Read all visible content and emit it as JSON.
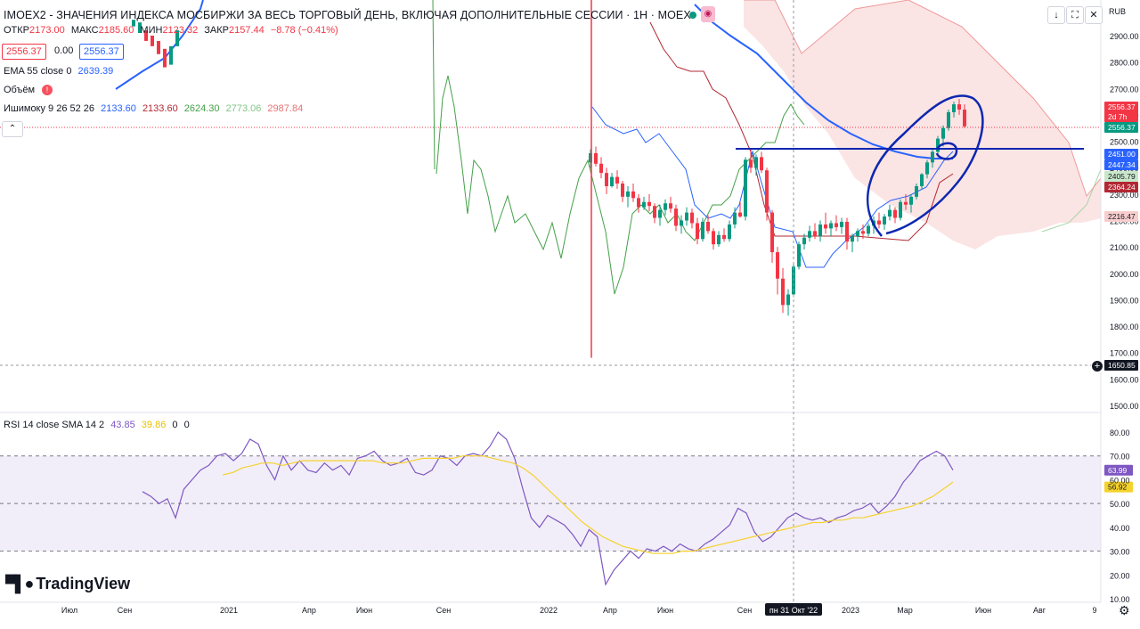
{
  "header": {
    "title": "IMOEX2 - ЗНАЧЕНИЯ ИНДЕКСА МОСБИРЖИ ЗА ВЕСЬ ТОРГОВЫЙ ДЕНЬ, ВКЛЮЧАЯ ДОПОЛНИТЕЛЬНЫЕ СЕССИИ · 1Н · MOEX",
    "currency": "RUB",
    "ohlc": {
      "open_label": "ОТКР",
      "open": "2173.00",
      "high_label": "МАКС",
      "high": "2185.60",
      "low_label": "МИН",
      "low": "2123.32",
      "close_label": "ЗАКР",
      "close": "2157.44",
      "change": "−8.78 (−0.41%)"
    },
    "sell_price": "2556.37",
    "spread": "0.00",
    "buy_price": "2556.37"
  },
  "indicators": {
    "ema": {
      "label": "EMA 55 close 0",
      "value": "2639.39"
    },
    "volume": {
      "label": "Объём"
    },
    "ichimoku": {
      "label": "Ишимоку 9 26 52 26",
      "values": [
        "2133.60",
        "2133.60",
        "2624.30",
        "2773.06",
        "2987.84"
      ]
    },
    "rsi": {
      "label": "RSI 14 close SMA 14 2",
      "values": [
        "43.85",
        "39.86",
        "0",
        "0"
      ]
    }
  },
  "toolbar": {
    "collapse": "⌃",
    "down": "↓",
    "expand": "⛶",
    "close": "✕"
  },
  "branding": {
    "logo": "TradingView"
  },
  "colors": {
    "up": "#089981",
    "down": "#f23645",
    "ema": "#2962ff",
    "tenkan": "#2962ff",
    "kijun": "#b22833",
    "chikou": "#43a047",
    "cloud": "#f8cdcd",
    "rsi": "#7e57c2",
    "rsi_ma": "#f5d22b",
    "annotation": "#0d27b0"
  },
  "chart_data": [
    {
      "type": "candlestick",
      "title": "IMOEX2 - ЗНАЧЕНИЯ ИНДЕКСА МОСБИРЖИ ЗА ВЕСЬ ТОРГОВЫЙ ДЕНЬ, ВКЛЮЧАЯ ДОПОЛНИТЕЛЬНЫЕ СЕССИИ · 1Н · MOEX",
      "x_ticks": [
        "Июл",
        "Сен",
        "2021",
        "Апр",
        "Июн",
        "Сен",
        "2022",
        "Апр",
        "Июн",
        "Сен",
        "пн 31 Окт '22",
        "2023",
        "Мар",
        "Июн",
        "Авг",
        "9"
      ],
      "y_ticks": [
        "2900.00",
        "2800.00",
        "2700.00",
        "2600.00",
        "2500.00",
        "2400.00",
        "2300.00",
        "2200.00",
        "2100.00",
        "2000.00",
        "1900.00",
        "1800.00",
        "1700.00",
        "1600.00",
        "1500.00"
      ],
      "ylim": [
        1500,
        2960
      ],
      "price_labels": [
        "2556.37",
        "2d 7h",
        "2556.37",
        "2451.00",
        "2447.34",
        "2405.79",
        "2364.24",
        "2216.47",
        "1650.85"
      ],
      "candles": [
        [
          2420,
          2470,
          2400,
          2455
        ],
        [
          2455,
          2480,
          2405,
          2415
        ],
        [
          2415,
          2440,
          2360,
          2380
        ],
        [
          2380,
          2400,
          2300,
          2330
        ],
        [
          2330,
          2380,
          2325,
          2365
        ],
        [
          2365,
          2390,
          2320,
          2340
        ],
        [
          2340,
          2350,
          2270,
          2290
        ],
        [
          2290,
          2330,
          2250,
          2310
        ],
        [
          2310,
          2340,
          2270,
          2285
        ],
        [
          2285,
          2300,
          2230,
          2250
        ],
        [
          2250,
          2290,
          2240,
          2270
        ],
        [
          2270,
          2300,
          2235,
          2255
        ],
        [
          2255,
          2265,
          2190,
          2210
        ],
        [
          2210,
          2260,
          2180,
          2240
        ],
        [
          2240,
          2280,
          2220,
          2265
        ],
        [
          2265,
          2290,
          2230,
          2245
        ],
        [
          2245,
          2260,
          2160,
          2180
        ],
        [
          2180,
          2220,
          2150,
          2200
        ],
        [
          2200,
          2250,
          2180,
          2230
        ],
        [
          2230,
          2245,
          2170,
          2190
        ],
        [
          2190,
          2210,
          2110,
          2130
        ],
        [
          2130,
          2210,
          2120,
          2195
        ],
        [
          2195,
          2220,
          2150,
          2160
        ],
        [
          2160,
          2170,
          2090,
          2110
        ],
        [
          2110,
          2160,
          2100,
          2145
        ],
        [
          2145,
          2170,
          2120,
          2130
        ],
        [
          2130,
          2200,
          2120,
          2185
        ],
        [
          2185,
          2250,
          2170,
          2230
        ],
        [
          2230,
          2270,
          2210,
          2215
        ],
        [
          2215,
          2440,
          2200,
          2430
        ],
        [
          2430,
          2470,
          2380,
          2400
        ],
        [
          2400,
          2450,
          2370,
          2440
        ],
        [
          2440,
          2460,
          2380,
          2390
        ],
        [
          2390,
          2400,
          2200,
          2230
        ],
        [
          2230,
          2240,
          2040,
          2080
        ],
        [
          2080,
          2100,
          1920,
          1980
        ],
        [
          1980,
          2020,
          1850,
          1880
        ],
        [
          1880,
          1940,
          1840,
          1920
        ],
        [
          1920,
          2040,
          1910,
          2025
        ],
        [
          2025,
          2120,
          2015,
          2110
        ],
        [
          2110,
          2150,
          2090,
          2135
        ],
        [
          2135,
          2180,
          2120,
          2160
        ],
        [
          2160,
          2190,
          2130,
          2140
        ],
        [
          2140,
          2200,
          2120,
          2185
        ],
        [
          2185,
          2230,
          2150,
          2170
        ],
        [
          2170,
          2200,
          2140,
          2190
        ],
        [
          2190,
          2220,
          2160,
          2175
        ],
        [
          2175,
          2210,
          2150,
          2195
        ],
        [
          2195,
          2210,
          2090,
          2120
        ],
        [
          2120,
          2150,
          2080,
          2140
        ],
        [
          2140,
          2170,
          2120,
          2160
        ],
        [
          2160,
          2185,
          2130,
          2150
        ],
        [
          2150,
          2190,
          2140,
          2180
        ],
        [
          2180,
          2215,
          2150,
          2200
        ],
        [
          2200,
          2230,
          2170,
          2185
        ],
        [
          2185,
          2225,
          2165,
          2215
        ],
        [
          2215,
          2260,
          2200,
          2240
        ],
        [
          2240,
          2250,
          2190,
          2210
        ],
        [
          2210,
          2280,
          2200,
          2270
        ],
        [
          2270,
          2300,
          2240,
          2260
        ],
        [
          2260,
          2300,
          2230,
          2290
        ],
        [
          2290,
          2340,
          2280,
          2330
        ],
        [
          2330,
          2380,
          2320,
          2375
        ],
        [
          2375,
          2430,
          2360,
          2420
        ],
        [
          2420,
          2470,
          2400,
          2460
        ],
        [
          2460,
          2520,
          2450,
          2510
        ],
        [
          2510,
          2560,
          2480,
          2550
        ],
        [
          2550,
          2620,
          2540,
          2610
        ],
        [
          2610,
          2650,
          2590,
          2640
        ],
        [
          2640,
          2660,
          2600,
          2620
        ],
        [
          2620,
          2640,
          2550,
          2556.37
        ]
      ]
    },
    {
      "type": "line",
      "title": "RSI 14 close SMA 14 2",
      "ylim": [
        10,
        80
      ],
      "y_ticks": [
        "80.00",
        "70.00",
        "60.00",
        "50.00",
        "40.00",
        "30.00",
        "20.00",
        "10.00"
      ],
      "series": [
        {
          "name": "RSI",
          "values": [
            55,
            53,
            50,
            52,
            44,
            56,
            60,
            64,
            66,
            70,
            71,
            68,
            71,
            77,
            75,
            66,
            60,
            70,
            64,
            68,
            64,
            63,
            67,
            64,
            66,
            62,
            69,
            70,
            72,
            68,
            66,
            67,
            69,
            63,
            62,
            64,
            70,
            69,
            66,
            70,
            71,
            70,
            74,
            80,
            77,
            69,
            56,
            44,
            40,
            45,
            43,
            41,
            37,
            32,
            39,
            36,
            16,
            22,
            26,
            30,
            27,
            31,
            30,
            32,
            30,
            33,
            31,
            30,
            33,
            35,
            38,
            41,
            48,
            46,
            38,
            34,
            36,
            40,
            44,
            46,
            44,
            43,
            44,
            42,
            44,
            45,
            47,
            48,
            50,
            46,
            49,
            53,
            59,
            63,
            68,
            70,
            72,
            70,
            64
          ]
        },
        {
          "name": "SMA",
          "values": [
            62,
            63,
            65,
            66,
            67,
            67,
            66,
            67,
            68,
            68,
            68,
            68,
            68,
            68,
            68,
            68,
            67,
            67,
            67,
            68,
            69,
            69,
            69,
            69,
            70,
            70,
            70,
            69,
            68,
            67,
            65,
            62,
            58,
            54,
            50,
            46,
            42,
            39,
            36,
            34,
            32,
            31,
            30,
            29,
            29,
            29,
            30,
            30,
            31,
            32,
            33,
            34,
            35,
            36,
            37,
            38,
            39,
            40,
            41,
            42,
            42,
            43,
            43,
            44,
            44,
            45,
            46,
            47,
            48,
            49,
            51,
            53,
            56,
            59
          ]
        }
      ]
    }
  ]
}
